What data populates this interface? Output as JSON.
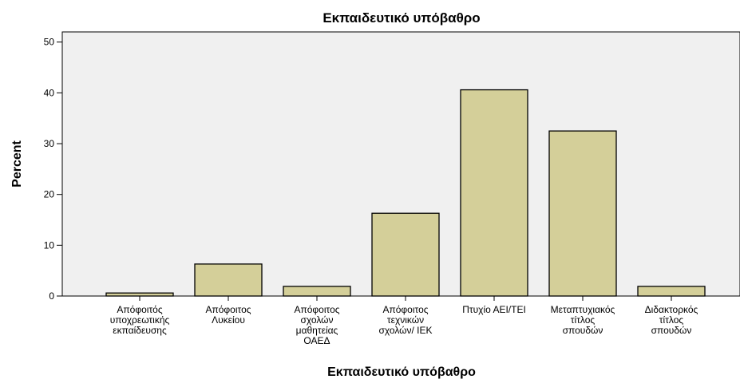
{
  "chart_data": {
    "type": "bar",
    "title": "Εκπαιδευτικό υπόβαθρο",
    "xlabel": "Εκπαιδευτικό υπόβαθρο",
    "ylabel": "Percent",
    "ylim": [
      0,
      52
    ],
    "yticks": [
      0,
      10,
      20,
      30,
      40,
      50
    ],
    "grid": false,
    "categories": [
      [
        "Απόφοιτός",
        "υποχρεωτικής",
        "εκπαίδευσης"
      ],
      [
        "Απόφοιτος",
        "Λυκείου"
      ],
      [
        "Απόφοιτος",
        "σχολών",
        "μαθητείας",
        "ΟΑΕΔ"
      ],
      [
        "Απόφοιτος",
        "τεχνικών",
        "σχολών/ ΙΕΚ"
      ],
      [
        "Πτυχίο ΑΕΙ/ΤΕΙ"
      ],
      [
        "Μεταπτυχιακός",
        "τίτλος",
        "σπουδών"
      ],
      [
        "Διδακτορκός",
        "τίτλος",
        "σπουδών"
      ]
    ],
    "values": [
      0.6,
      6.3,
      1.9,
      16.3,
      40.6,
      32.5,
      1.9
    ]
  },
  "colors": {
    "bar_fill": "#d4cf99",
    "bar_stroke": "#000000",
    "plot_bg": "#f0f0f0",
    "page_bg": "#ffffff"
  }
}
